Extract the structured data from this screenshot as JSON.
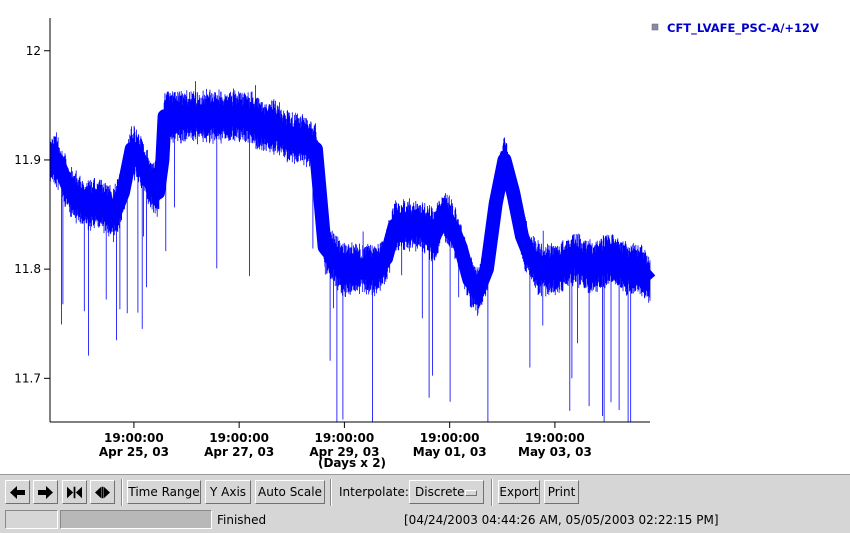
{
  "chart_data": {
    "type": "line",
    "series": [
      {
        "name": "CFT_LVAFE_PSC-A/+12V",
        "color": "#0000ff",
        "points": [
          [
            "04/24/2003 04:44",
            11.9
          ],
          [
            "04/24/2003 08:00",
            11.9
          ],
          [
            "04/24/2003 14:00",
            11.87
          ],
          [
            "04/24/2003 20:00",
            11.86
          ],
          [
            "04/25/2003 04:00",
            11.86
          ],
          [
            "04/25/2003 10:00",
            11.85
          ],
          [
            "04/25/2003 14:00",
            11.87
          ],
          [
            "04/25/2003 18:00",
            11.91
          ],
          [
            "04/25/2003 22:00",
            11.9
          ],
          [
            "04/26/2003 02:00",
            11.88
          ],
          [
            "04/26/2003 06:00",
            11.87
          ],
          [
            "04/26/2003 08:00",
            11.9
          ],
          [
            "04/26/2003 09:00",
            11.94
          ],
          [
            "04/26/2003 16:00",
            11.94
          ],
          [
            "04/26/2003 22:00",
            11.94
          ],
          [
            "04/27/2003 06:00",
            11.94
          ],
          [
            "04/27/2003 14:00",
            11.94
          ],
          [
            "04/27/2003 22:00",
            11.94
          ],
          [
            "04/28/2003 06:00",
            11.93
          ],
          [
            "04/28/2003 12:00",
            11.93
          ],
          [
            "04/28/2003 18:00",
            11.92
          ],
          [
            "04/29/2003 00:00",
            11.92
          ],
          [
            "04/29/2003 06:00",
            11.91
          ],
          [
            "04/29/2003 10:00",
            11.82
          ],
          [
            "04/29/2003 18:00",
            11.8
          ],
          [
            "04/30/2003 02:00",
            11.8
          ],
          [
            "04/30/2003 10:00",
            11.8
          ],
          [
            "04/30/2003 14:00",
            11.81
          ],
          [
            "04/30/2003 18:00",
            11.84
          ],
          [
            "04/30/2003 22:00",
            11.84
          ],
          [
            "05/01/2003 06:00",
            11.84
          ],
          [
            "05/01/2003 12:00",
            11.83
          ],
          [
            "05/01/2003 16:00",
            11.85
          ],
          [
            "05/01/2003 20:00",
            11.84
          ],
          [
            "05/02/2003 00:00",
            11.82
          ],
          [
            "05/02/2003 04:00",
            11.79
          ],
          [
            "05/02/2003 08:00",
            11.78
          ],
          [
            "05/02/2003 12:00",
            11.8
          ],
          [
            "05/02/2003 16:00",
            11.86
          ],
          [
            "05/02/2003 20:00",
            11.9
          ],
          [
            "05/03/2003 00:00",
            11.87
          ],
          [
            "05/03/2003 04:00",
            11.83
          ],
          [
            "05/03/2003 08:00",
            11.81
          ],
          [
            "05/03/2003 12:00",
            11.8
          ],
          [
            "05/03/2003 20:00",
            11.8
          ],
          [
            "05/04/2003 04:00",
            11.81
          ],
          [
            "05/04/2003 12:00",
            11.8
          ],
          [
            "05/04/2003 20:00",
            11.81
          ],
          [
            "05/05/2003 04:00",
            11.8
          ],
          [
            "05/05/2003 10:00",
            11.8
          ],
          [
            "05/05/2003 14:22",
            11.79
          ]
        ]
      }
    ],
    "x_type": "datetime",
    "xlim": [
      "04/24/2003 04:44",
      "05/05/2003 14:22"
    ],
    "ylim": [
      11.66,
      12.03
    ],
    "y_ticks": [
      "11.7",
      "11.8",
      "11.9",
      "12"
    ],
    "x_ticks": [
      {
        "at": "04/25/2003 19:00",
        "label1": "19:00:00",
        "label2": "Apr 25, 03"
      },
      {
        "at": "04/27/2003 19:00",
        "label1": "19:00:00",
        "label2": "Apr 27, 03"
      },
      {
        "at": "04/29/2003 19:00",
        "label1": "19:00:00",
        "label2": "Apr 29, 03"
      },
      {
        "at": "05/01/2003 19:00",
        "label1": "19:00:00",
        "label2": "May 01, 03"
      },
      {
        "at": "05/03/2003 19:00",
        "label1": "19:00:00",
        "label2": "May 03, 03"
      }
    ],
    "xlabel": "(Days x 2)",
    "legend_placement": "top-right",
    "grid": false
  },
  "toolbar": {
    "back_icon": "arrow-left-icon",
    "forward_icon": "arrow-right-icon",
    "expand_icon": "arrows-inward-icon",
    "shrink_icon": "arrows-outward-icon",
    "time_range": "Time Range",
    "y_axis": "Y Axis",
    "auto_scale": "Auto Scale",
    "interpolate_label": "Interpolate:",
    "interpolate_value": "Discrete",
    "export": "Export",
    "print": "Print"
  },
  "status": {
    "progress": 1.0,
    "message": "Finished",
    "range": "[04/24/2003 04:44:26 AM, 05/05/2003 02:22:15 PM]"
  }
}
